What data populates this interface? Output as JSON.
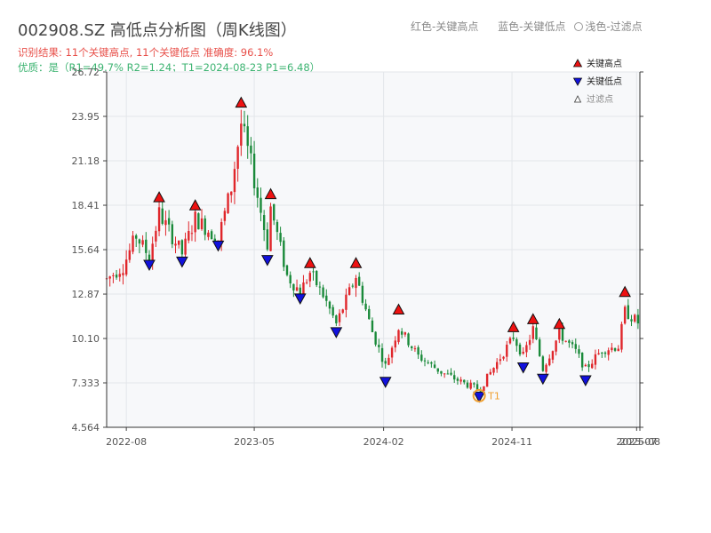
{
  "header": {
    "title": "002908.SZ 高低点分析图（周K线图）",
    "result_line": "识别结果: 11个关键高点, 11个关键低点   准确度: 96.1%",
    "quality_line": "优质：是（R1=49.7%  R2=1.24；T1=2024-08-23 P1=6.48）",
    "legend_red": "红色-关键高点",
    "legend_blue": "蓝色-关键低点",
    "legend_light": "浅色-过滤点"
  },
  "chart_data": {
    "type": "candlestick",
    "title": "002908.SZ 高低点分析图（周K线图）",
    "y_ticks": [
      "4.564",
      "7.333",
      "10.10",
      "12.87",
      "15.64",
      "18.41",
      "21.18",
      "23.95",
      "26.72"
    ],
    "ylim": [
      4.564,
      26.72
    ],
    "x_ticks": [
      "2022-08",
      "2023-05",
      "2024-02",
      "2024-11",
      "2025-07",
      "2025-08"
    ],
    "xlim": [
      "2022-06-20",
      "2025-08-01"
    ],
    "grid": true,
    "legend": {
      "position": "top-right",
      "entries": [
        "关键高点",
        "关键低点",
        "过滤点"
      ]
    },
    "colors": {
      "up": "#e0262b",
      "down": "#1a8a3a",
      "high_marker": "#ee1111",
      "low_marker": "#1111dd",
      "t1_marker": "#f0a030"
    },
    "key_highs": [
      {
        "date": "2022-10-10",
        "value": 18.9
      },
      {
        "date": "2022-12-26",
        "value": 18.4
      },
      {
        "date": "2023-04-03",
        "value": 24.8
      },
      {
        "date": "2023-06-05",
        "value": 19.1
      },
      {
        "date": "2023-08-28",
        "value": 14.8
      },
      {
        "date": "2023-12-04",
        "value": 14.8
      },
      {
        "date": "2024-03-04",
        "value": 11.9
      },
      {
        "date": "2024-11-04",
        "value": 10.8
      },
      {
        "date": "2024-12-16",
        "value": 11.3
      },
      {
        "date": "2025-02-10",
        "value": 11.0
      },
      {
        "date": "2025-06-30",
        "value": 13.0
      }
    ],
    "key_lows": [
      {
        "date": "2022-09-19",
        "value": 14.7
      },
      {
        "date": "2022-11-28",
        "value": 14.9
      },
      {
        "date": "2023-02-13",
        "value": 15.9
      },
      {
        "date": "2023-05-29",
        "value": 15.0
      },
      {
        "date": "2023-08-07",
        "value": 12.6
      },
      {
        "date": "2023-10-23",
        "value": 10.5
      },
      {
        "date": "2024-02-05",
        "value": 7.4
      },
      {
        "date": "2024-08-23",
        "value": 6.48
      },
      {
        "date": "2024-11-25",
        "value": 8.3
      },
      {
        "date": "2025-01-06",
        "value": 7.6
      },
      {
        "date": "2025-04-07",
        "value": 7.5
      }
    ],
    "t1": {
      "date": "2024-08-23",
      "value": 6.48,
      "label": "T1"
    },
    "price_path": [
      {
        "date": "2022-06-20",
        "value": 13.8
      },
      {
        "date": "2022-07-25",
        "value": 14.6
      },
      {
        "date": "2022-08-22",
        "value": 16.5
      },
      {
        "date": "2022-09-19",
        "value": 15.2
      },
      {
        "date": "2022-10-10",
        "value": 17.9
      },
      {
        "date": "2022-11-28",
        "value": 15.4
      },
      {
        "date": "2022-12-26",
        "value": 17.6
      },
      {
        "date": "2023-02-13",
        "value": 16.3
      },
      {
        "date": "2023-03-13",
        "value": 19.5
      },
      {
        "date": "2023-04-03",
        "value": 23.5
      },
      {
        "date": "2023-04-24",
        "value": 21.0
      },
      {
        "date": "2023-05-29",
        "value": 16.0
      },
      {
        "date": "2023-06-05",
        "value": 18.3
      },
      {
        "date": "2023-07-10",
        "value": 14.0
      },
      {
        "date": "2023-08-07",
        "value": 13.0
      },
      {
        "date": "2023-08-28",
        "value": 14.2
      },
      {
        "date": "2023-09-25",
        "value": 12.8
      },
      {
        "date": "2023-10-23",
        "value": 11.0
      },
      {
        "date": "2023-12-04",
        "value": 14.0
      },
      {
        "date": "2024-01-08",
        "value": 10.5
      },
      {
        "date": "2024-02-05",
        "value": 8.4
      },
      {
        "date": "2024-03-04",
        "value": 10.8
      },
      {
        "date": "2024-04-15",
        "value": 9.0
      },
      {
        "date": "2024-06-03",
        "value": 8.0
      },
      {
        "date": "2024-07-15",
        "value": 7.4
      },
      {
        "date": "2024-08-23",
        "value": 6.9
      },
      {
        "date": "2024-09-30",
        "value": 8.6
      },
      {
        "date": "2024-11-04",
        "value": 10.2
      },
      {
        "date": "2024-11-25",
        "value": 9.0
      },
      {
        "date": "2024-12-16",
        "value": 10.7
      },
      {
        "date": "2025-01-06",
        "value": 8.2
      },
      {
        "date": "2025-02-10",
        "value": 10.4
      },
      {
        "date": "2025-03-17",
        "value": 9.3
      },
      {
        "date": "2025-04-07",
        "value": 8.2
      },
      {
        "date": "2025-05-12",
        "value": 9.4
      },
      {
        "date": "2025-06-16",
        "value": 9.6
      },
      {
        "date": "2025-06-30",
        "value": 11.8
      },
      {
        "date": "2025-08-01",
        "value": 11.0
      }
    ]
  }
}
